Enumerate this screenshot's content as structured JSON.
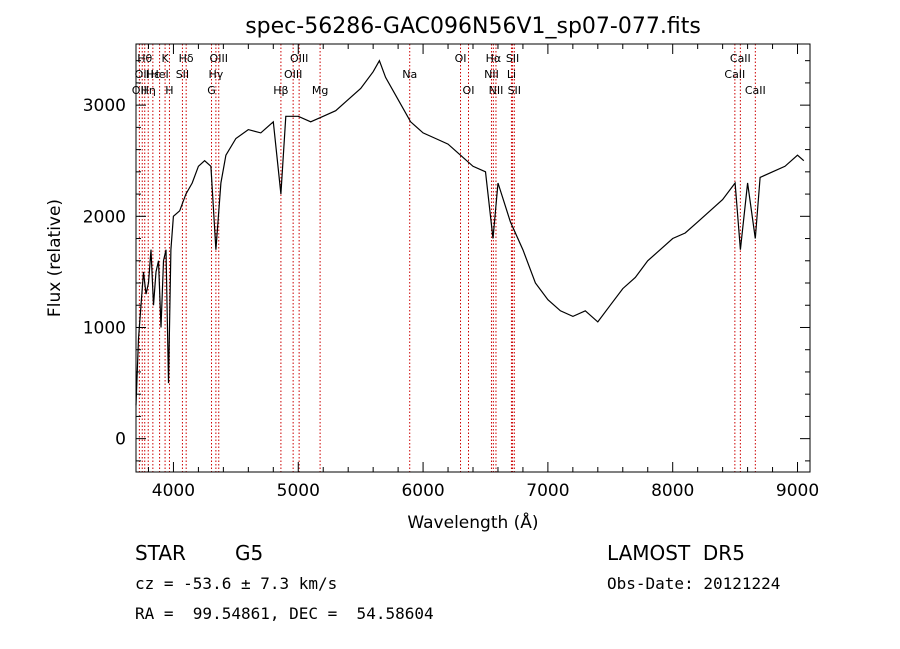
{
  "chart_data": {
    "type": "line",
    "title": "spec-56286-GAC096N56V1_sp07-077.fits",
    "xlabel": "Wavelength (Å)",
    "ylabel": "Flux (relative)",
    "xlim": [
      3700,
      9100
    ],
    "ylim": [
      -300,
      3550
    ],
    "xticks": [
      4000,
      5000,
      6000,
      7000,
      8000,
      9000
    ],
    "yticks": [
      0,
      1000,
      2000,
      3000
    ],
    "grid": false,
    "series": [
      {
        "color": "#000000",
        "x": [
          3700,
          3720,
          3740,
          3760,
          3780,
          3800,
          3820,
          3840,
          3860,
          3880,
          3900,
          3920,
          3940,
          3960,
          3980,
          4000,
          4050,
          4100,
          4150,
          4200,
          4250,
          4300,
          4340,
          4380,
          4420,
          4500,
          4600,
          4700,
          4800,
          4861,
          4900,
          5000,
          5100,
          5200,
          5300,
          5400,
          5500,
          5600,
          5650,
          5700,
          5800,
          5900,
          6000,
          6100,
          6200,
          6300,
          6400,
          6500,
          6560,
          6600,
          6700,
          6800,
          6900,
          7000,
          7100,
          7200,
          7300,
          7400,
          7500,
          7600,
          7700,
          7800,
          7900,
          8000,
          8100,
          8200,
          8300,
          8400,
          8500,
          8542,
          8600,
          8662,
          8700,
          8800,
          8900,
          9000,
          9050
        ],
        "values": [
          300,
          900,
          1200,
          1500,
          1300,
          1400,
          1700,
          1200,
          1500,
          1600,
          1000,
          1600,
          1700,
          500,
          1700,
          2000,
          2050,
          2200,
          2300,
          2450,
          2500,
          2450,
          1700,
          2300,
          2550,
          2700,
          2780,
          2750,
          2850,
          2200,
          2900,
          2900,
          2850,
          2900,
          2950,
          3050,
          3150,
          3300,
          3400,
          3250,
          3050,
          2850,
          2750,
          2700,
          2650,
          2550,
          2450,
          2400,
          1800,
          2300,
          1950,
          1700,
          1400,
          1250,
          1150,
          1100,
          1150,
          1050,
          1200,
          1350,
          1450,
          1600,
          1700,
          1800,
          1850,
          1950,
          2050,
          2150,
          2300,
          1700,
          2300,
          1800,
          2350,
          2400,
          2450,
          2550,
          2500
        ]
      }
    ],
    "lines": [
      {
        "x": 3727,
        "label": "OII",
        "row": 3
      },
      {
        "x": 3750,
        "label": "OII",
        "row": 2
      },
      {
        "x": 3770,
        "label": "Hθ",
        "row": 1
      },
      {
        "x": 3798,
        "label": "Hη",
        "row": 3
      },
      {
        "x": 3835,
        "label": "Hε",
        "row": 2
      },
      {
        "x": 3889,
        "label": "HeI",
        "row": 2
      },
      {
        "x": 3933,
        "label": "K",
        "row": 1
      },
      {
        "x": 3968,
        "label": "H",
        "row": 3
      },
      {
        "x": 4072,
        "label": "SII",
        "row": 2
      },
      {
        "x": 4102,
        "label": "Hδ",
        "row": 1
      },
      {
        "x": 4305,
        "label": "G",
        "row": 3
      },
      {
        "x": 4340,
        "label": "Hγ",
        "row": 2
      },
      {
        "x": 4363,
        "label": "OIII",
        "row": 1
      },
      {
        "x": 4861,
        "label": "Hβ",
        "row": 3
      },
      {
        "x": 4959,
        "label": "OIII",
        "row": 2
      },
      {
        "x": 5007,
        "label": "OIII",
        "row": 1
      },
      {
        "x": 5175,
        "label": "Mg",
        "row": 3
      },
      {
        "x": 5893,
        "label": "Na",
        "row": 2
      },
      {
        "x": 6300,
        "label": "OI",
        "row": 1
      },
      {
        "x": 6364,
        "label": "OI",
        "row": 3
      },
      {
        "x": 6548,
        "label": "NII",
        "row": 2
      },
      {
        "x": 6563,
        "label": "Hα",
        "row": 1
      },
      {
        "x": 6584,
        "label": "NII",
        "row": 3
      },
      {
        "x": 6708,
        "label": "Li",
        "row": 2
      },
      {
        "x": 6717,
        "label": "SII",
        "row": 1
      },
      {
        "x": 6731,
        "label": "SII",
        "row": 3
      },
      {
        "x": 8498,
        "label": "CaII",
        "row": 2
      },
      {
        "x": 8542,
        "label": "CaII",
        "row": 1
      },
      {
        "x": 8662,
        "label": "CaII",
        "row": 3
      }
    ],
    "line_color": "#cc0000"
  },
  "info": {
    "class_label": "STAR",
    "subclass": "G5",
    "survey": "LAMOST  DR5",
    "cz": "cz = -53.6 ± 7.3 km/s",
    "obs_date": "Obs-Date: 20121224",
    "coords": "RA =  99.54861, DEC =  54.58604"
  }
}
